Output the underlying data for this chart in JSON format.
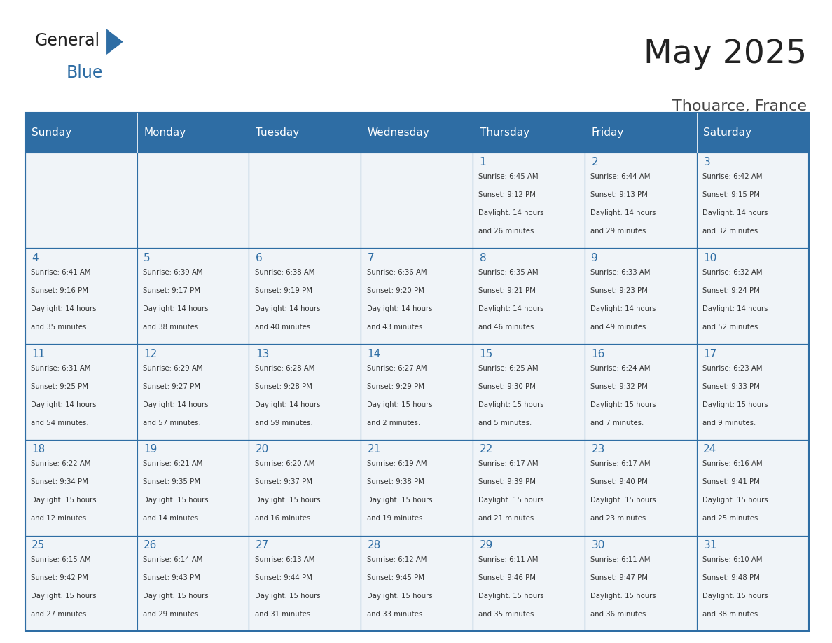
{
  "title": "May 2025",
  "subtitle": "Thouarce, France",
  "header_color": "#2E6DA4",
  "header_text_color": "#FFFFFF",
  "cell_bg_color": "#F0F4F8",
  "border_color": "#2E6DA4",
  "day_number_color": "#2E6DA4",
  "text_color": "#333333",
  "days_of_week": [
    "Sunday",
    "Monday",
    "Tuesday",
    "Wednesday",
    "Thursday",
    "Friday",
    "Saturday"
  ],
  "weeks": [
    [
      {
        "day": "",
        "info": ""
      },
      {
        "day": "",
        "info": ""
      },
      {
        "day": "",
        "info": ""
      },
      {
        "day": "",
        "info": ""
      },
      {
        "day": "1",
        "info": "Sunrise: 6:45 AM\nSunset: 9:12 PM\nDaylight: 14 hours\nand 26 minutes."
      },
      {
        "day": "2",
        "info": "Sunrise: 6:44 AM\nSunset: 9:13 PM\nDaylight: 14 hours\nand 29 minutes."
      },
      {
        "day": "3",
        "info": "Sunrise: 6:42 AM\nSunset: 9:15 PM\nDaylight: 14 hours\nand 32 minutes."
      }
    ],
    [
      {
        "day": "4",
        "info": "Sunrise: 6:41 AM\nSunset: 9:16 PM\nDaylight: 14 hours\nand 35 minutes."
      },
      {
        "day": "5",
        "info": "Sunrise: 6:39 AM\nSunset: 9:17 PM\nDaylight: 14 hours\nand 38 minutes."
      },
      {
        "day": "6",
        "info": "Sunrise: 6:38 AM\nSunset: 9:19 PM\nDaylight: 14 hours\nand 40 minutes."
      },
      {
        "day": "7",
        "info": "Sunrise: 6:36 AM\nSunset: 9:20 PM\nDaylight: 14 hours\nand 43 minutes."
      },
      {
        "day": "8",
        "info": "Sunrise: 6:35 AM\nSunset: 9:21 PM\nDaylight: 14 hours\nand 46 minutes."
      },
      {
        "day": "9",
        "info": "Sunrise: 6:33 AM\nSunset: 9:23 PM\nDaylight: 14 hours\nand 49 minutes."
      },
      {
        "day": "10",
        "info": "Sunrise: 6:32 AM\nSunset: 9:24 PM\nDaylight: 14 hours\nand 52 minutes."
      }
    ],
    [
      {
        "day": "11",
        "info": "Sunrise: 6:31 AM\nSunset: 9:25 PM\nDaylight: 14 hours\nand 54 minutes."
      },
      {
        "day": "12",
        "info": "Sunrise: 6:29 AM\nSunset: 9:27 PM\nDaylight: 14 hours\nand 57 minutes."
      },
      {
        "day": "13",
        "info": "Sunrise: 6:28 AM\nSunset: 9:28 PM\nDaylight: 14 hours\nand 59 minutes."
      },
      {
        "day": "14",
        "info": "Sunrise: 6:27 AM\nSunset: 9:29 PM\nDaylight: 15 hours\nand 2 minutes."
      },
      {
        "day": "15",
        "info": "Sunrise: 6:25 AM\nSunset: 9:30 PM\nDaylight: 15 hours\nand 5 minutes."
      },
      {
        "day": "16",
        "info": "Sunrise: 6:24 AM\nSunset: 9:32 PM\nDaylight: 15 hours\nand 7 minutes."
      },
      {
        "day": "17",
        "info": "Sunrise: 6:23 AM\nSunset: 9:33 PM\nDaylight: 15 hours\nand 9 minutes."
      }
    ],
    [
      {
        "day": "18",
        "info": "Sunrise: 6:22 AM\nSunset: 9:34 PM\nDaylight: 15 hours\nand 12 minutes."
      },
      {
        "day": "19",
        "info": "Sunrise: 6:21 AM\nSunset: 9:35 PM\nDaylight: 15 hours\nand 14 minutes."
      },
      {
        "day": "20",
        "info": "Sunrise: 6:20 AM\nSunset: 9:37 PM\nDaylight: 15 hours\nand 16 minutes."
      },
      {
        "day": "21",
        "info": "Sunrise: 6:19 AM\nSunset: 9:38 PM\nDaylight: 15 hours\nand 19 minutes."
      },
      {
        "day": "22",
        "info": "Sunrise: 6:17 AM\nSunset: 9:39 PM\nDaylight: 15 hours\nand 21 minutes."
      },
      {
        "day": "23",
        "info": "Sunrise: 6:17 AM\nSunset: 9:40 PM\nDaylight: 15 hours\nand 23 minutes."
      },
      {
        "day": "24",
        "info": "Sunrise: 6:16 AM\nSunset: 9:41 PM\nDaylight: 15 hours\nand 25 minutes."
      }
    ],
    [
      {
        "day": "25",
        "info": "Sunrise: 6:15 AM\nSunset: 9:42 PM\nDaylight: 15 hours\nand 27 minutes."
      },
      {
        "day": "26",
        "info": "Sunrise: 6:14 AM\nSunset: 9:43 PM\nDaylight: 15 hours\nand 29 minutes."
      },
      {
        "day": "27",
        "info": "Sunrise: 6:13 AM\nSunset: 9:44 PM\nDaylight: 15 hours\nand 31 minutes."
      },
      {
        "day": "28",
        "info": "Sunrise: 6:12 AM\nSunset: 9:45 PM\nDaylight: 15 hours\nand 33 minutes."
      },
      {
        "day": "29",
        "info": "Sunrise: 6:11 AM\nSunset: 9:46 PM\nDaylight: 15 hours\nand 35 minutes."
      },
      {
        "day": "30",
        "info": "Sunrise: 6:11 AM\nSunset: 9:47 PM\nDaylight: 15 hours\nand 36 minutes."
      },
      {
        "day": "31",
        "info": "Sunrise: 6:10 AM\nSunset: 9:48 PM\nDaylight: 15 hours\nand 38 minutes."
      }
    ]
  ],
  "logo_general_color": "#222222",
  "logo_blue_color": "#2E6DA4",
  "title_color": "#222222",
  "subtitle_color": "#444444"
}
